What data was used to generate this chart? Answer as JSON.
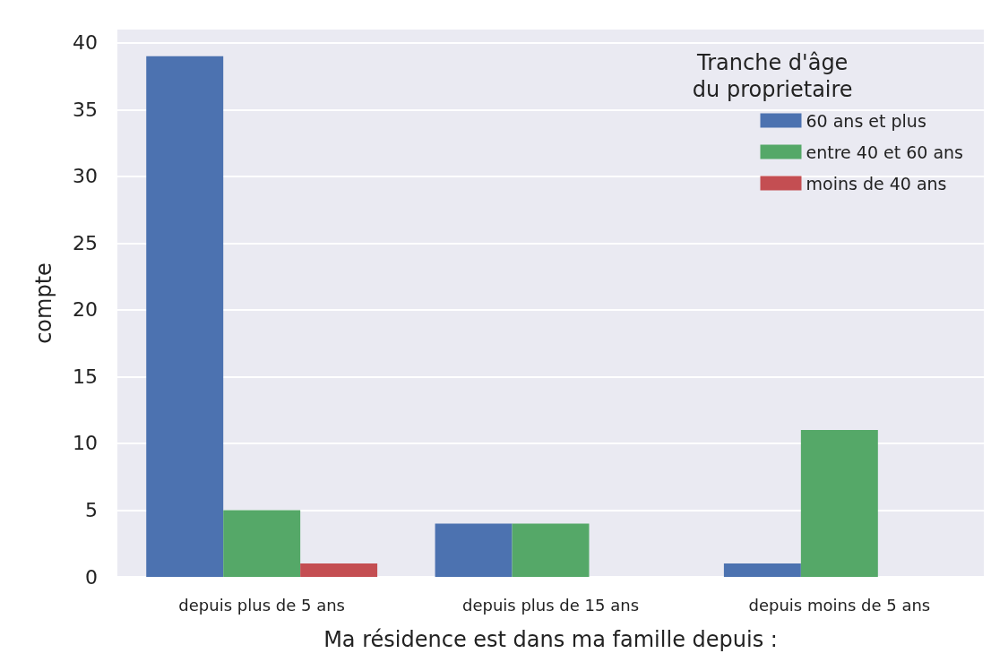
{
  "chart_data": {
    "type": "bar",
    "categories": [
      "depuis plus de 5 ans",
      "depuis plus de 15 ans",
      "depuis moins de 5 ans"
    ],
    "xlabel": "Ma résidence est dans ma famille depuis :",
    "ylabel": "compte",
    "legend_title": "Tranche d'âge\ndu proprietaire",
    "series": [
      {
        "name": "60 ans et plus",
        "color": "#4c72b0",
        "values": [
          39,
          4,
          1
        ]
      },
      {
        "name": "entre 40 et 60 ans",
        "color": "#55a868",
        "values": [
          5,
          4,
          11
        ]
      },
      {
        "name": "moins de 40 ans",
        "color": "#c44e52",
        "values": [
          1,
          null,
          null
        ]
      }
    ],
    "ylim": [
      0,
      41
    ],
    "yticks": [
      0,
      5,
      10,
      15,
      20,
      25,
      30,
      35,
      40
    ],
    "grid": "y",
    "legend": "top right"
  }
}
